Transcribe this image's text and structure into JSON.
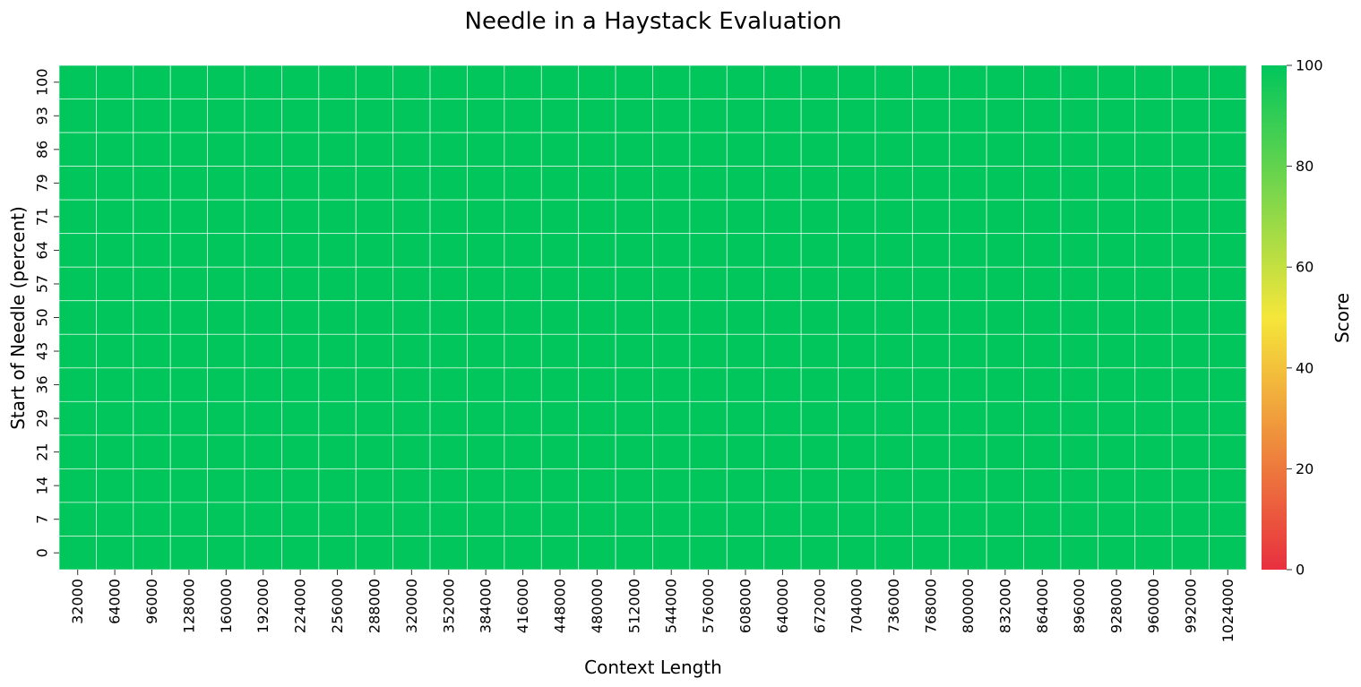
{
  "chart_data": {
    "type": "heatmap",
    "title": "Needle in a Haystack Evaluation",
    "xlabel": "Context Length",
    "ylabel": "Start of Needle (percent)",
    "x": [
      "32000",
      "64000",
      "96000",
      "128000",
      "160000",
      "192000",
      "224000",
      "256000",
      "288000",
      "320000",
      "352000",
      "384000",
      "416000",
      "448000",
      "480000",
      "512000",
      "544000",
      "576000",
      "608000",
      "640000",
      "672000",
      "704000",
      "736000",
      "768000",
      "800000",
      "832000",
      "864000",
      "896000",
      "928000",
      "960000",
      "992000",
      "1024000"
    ],
    "y": [
      "100",
      "93",
      "86",
      "79",
      "71",
      "64",
      "57",
      "50",
      "43",
      "36",
      "29",
      "21",
      "14",
      "7",
      "0"
    ],
    "values": [
      [
        100,
        100,
        100,
        100,
        100,
        100,
        100,
        100,
        100,
        100,
        100,
        100,
        100,
        100,
        100,
        100,
        100,
        100,
        100,
        100,
        100,
        100,
        100,
        100,
        100,
        100,
        100,
        100,
        100,
        100,
        100,
        100
      ],
      [
        100,
        100,
        100,
        100,
        100,
        100,
        100,
        100,
        100,
        100,
        100,
        100,
        100,
        100,
        100,
        100,
        100,
        100,
        100,
        100,
        100,
        100,
        100,
        100,
        100,
        100,
        100,
        100,
        100,
        100,
        100,
        100
      ],
      [
        100,
        100,
        100,
        100,
        100,
        100,
        100,
        100,
        100,
        100,
        100,
        100,
        100,
        100,
        100,
        100,
        100,
        100,
        100,
        100,
        100,
        100,
        100,
        100,
        100,
        100,
        100,
        100,
        100,
        100,
        100,
        100
      ],
      [
        100,
        100,
        100,
        100,
        100,
        100,
        100,
        100,
        100,
        100,
        100,
        100,
        100,
        100,
        100,
        100,
        100,
        100,
        100,
        100,
        100,
        100,
        100,
        100,
        100,
        100,
        100,
        100,
        100,
        100,
        100,
        100
      ],
      [
        100,
        100,
        100,
        100,
        100,
        100,
        100,
        100,
        100,
        100,
        100,
        100,
        100,
        100,
        100,
        100,
        100,
        100,
        100,
        100,
        100,
        100,
        100,
        100,
        100,
        100,
        100,
        100,
        100,
        100,
        100,
        100
      ],
      [
        100,
        100,
        100,
        100,
        100,
        100,
        100,
        100,
        100,
        100,
        100,
        100,
        100,
        100,
        100,
        100,
        100,
        100,
        100,
        100,
        100,
        100,
        100,
        100,
        100,
        100,
        100,
        100,
        100,
        100,
        100,
        100
      ],
      [
        100,
        100,
        100,
        100,
        100,
        100,
        100,
        100,
        100,
        100,
        100,
        100,
        100,
        100,
        100,
        100,
        100,
        100,
        100,
        100,
        100,
        100,
        100,
        100,
        100,
        100,
        100,
        100,
        100,
        100,
        100,
        100
      ],
      [
        100,
        100,
        100,
        100,
        100,
        100,
        100,
        100,
        100,
        100,
        100,
        100,
        100,
        100,
        100,
        100,
        100,
        100,
        100,
        100,
        100,
        100,
        100,
        100,
        100,
        100,
        100,
        100,
        100,
        100,
        100,
        100
      ],
      [
        100,
        100,
        100,
        100,
        100,
        100,
        100,
        100,
        100,
        100,
        100,
        100,
        100,
        100,
        100,
        100,
        100,
        100,
        100,
        100,
        100,
        100,
        100,
        100,
        100,
        100,
        100,
        100,
        100,
        100,
        100,
        100
      ],
      [
        100,
        100,
        100,
        100,
        100,
        100,
        100,
        100,
        100,
        100,
        100,
        100,
        100,
        100,
        100,
        100,
        100,
        100,
        100,
        100,
        100,
        100,
        100,
        100,
        100,
        100,
        100,
        100,
        100,
        100,
        100,
        100
      ],
      [
        100,
        100,
        100,
        100,
        100,
        100,
        100,
        100,
        100,
        100,
        100,
        100,
        100,
        100,
        100,
        100,
        100,
        100,
        100,
        100,
        100,
        100,
        100,
        100,
        100,
        100,
        100,
        100,
        100,
        100,
        100,
        100
      ],
      [
        100,
        100,
        100,
        100,
        100,
        100,
        100,
        100,
        100,
        100,
        100,
        100,
        100,
        100,
        100,
        100,
        100,
        100,
        100,
        100,
        100,
        100,
        100,
        100,
        100,
        100,
        100,
        100,
        100,
        100,
        100,
        100
      ],
      [
        100,
        100,
        100,
        100,
        100,
        100,
        100,
        100,
        100,
        100,
        100,
        100,
        100,
        100,
        100,
        100,
        100,
        100,
        100,
        100,
        100,
        100,
        100,
        100,
        100,
        100,
        100,
        100,
        100,
        100,
        100,
        100
      ],
      [
        100,
        100,
        100,
        100,
        100,
        100,
        100,
        100,
        100,
        100,
        100,
        100,
        100,
        100,
        100,
        100,
        100,
        100,
        100,
        100,
        100,
        100,
        100,
        100,
        100,
        100,
        100,
        100,
        100,
        100,
        100,
        100
      ],
      [
        100,
        100,
        100,
        100,
        100,
        100,
        100,
        100,
        100,
        100,
        100,
        100,
        100,
        100,
        100,
        100,
        100,
        100,
        100,
        100,
        100,
        100,
        100,
        100,
        100,
        100,
        100,
        100,
        100,
        100,
        100,
        100
      ]
    ],
    "colorbar": {
      "label": "Score",
      "range": [
        0,
        100
      ],
      "ticks": [
        "0",
        "20",
        "40",
        "60",
        "80",
        "100"
      ],
      "colors": [
        "#e8303f",
        "#f5e63a",
        "#00c65c"
      ]
    },
    "grid": true,
    "legend": "colorbar-right"
  }
}
